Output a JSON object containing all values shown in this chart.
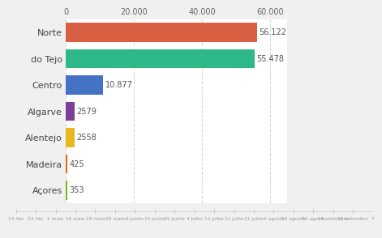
{
  "ytick_labels": [
    "Norte",
    "do Tejo",
    "Centro",
    "Algarve",
    "Alentejo",
    "Madeira",
    "Açores"
  ],
  "values": [
    56122,
    55478,
    10877,
    2579,
    2558,
    425,
    353
  ],
  "value_labels": [
    "56.122",
    "55.478",
    "10.877",
    "2579",
    "2558",
    "425",
    "353"
  ],
  "colors": [
    "#d95f43",
    "#2eb886",
    "#4472c4",
    "#7b3f99",
    "#e8b820",
    "#e8640a",
    "#7cb518"
  ],
  "xlim": [
    0,
    65000
  ],
  "xticks": [
    0,
    20000,
    40000,
    60000
  ],
  "xtick_labels": [
    "0",
    "20.000",
    "40.000",
    "60.000"
  ],
  "background_color": "#f0f0f0",
  "chart_bg": "#ffffff",
  "bar_height": 0.72,
  "timeline_labels": [
    "14 Abr",
    "24 Abr",
    "2 maio",
    "10 maio",
    "19 maio",
    "28 maio",
    "6 junho",
    "15 junho",
    "25 junho",
    "4 julho",
    "12 julho",
    "21 julho",
    "31 julho",
    "9 agosto",
    "19 agosto",
    "30 agosto",
    "11 setembro",
    "25 setembro",
    "7"
  ],
  "grid_color": "#d8d8d8",
  "text_color": "#666666",
  "label_color": "#555555"
}
